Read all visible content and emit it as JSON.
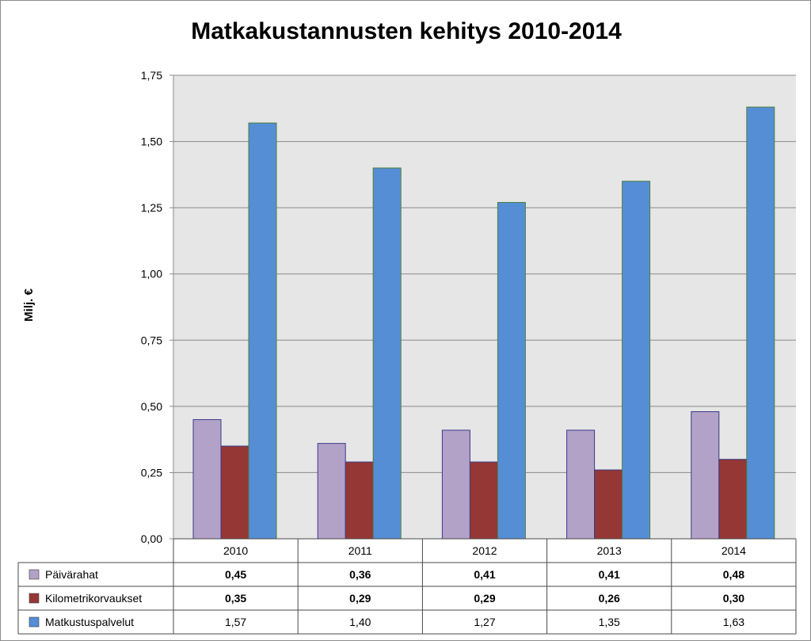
{
  "chart_data": {
    "type": "bar",
    "title": "Matkakustannusten kehitys 2010-2014",
    "ylabel": "Milj. €",
    "xlabel": "",
    "ylim": [
      0,
      1.75
    ],
    "yticks": [
      "0,00",
      "0,25",
      "0,50",
      "0,75",
      "1,00",
      "1,25",
      "1,50",
      "1,75"
    ],
    "grid": true,
    "background_color": "#e6e6e6",
    "categories": [
      "2010",
      "2011",
      "2012",
      "2013",
      "2014"
    ],
    "series": [
      {
        "name": "Päivärahat",
        "color": "#b3a2c7",
        "values": [
          0.45,
          0.36,
          0.41,
          0.41,
          0.48
        ],
        "labels": [
          "0,45",
          "0,36",
          "0,41",
          "0,41",
          "0,48"
        ],
        "bold": true
      },
      {
        "name": "Kilometrikorvaukset",
        "color": "#953735",
        "values": [
          0.35,
          0.29,
          0.29,
          0.26,
          0.3
        ],
        "labels": [
          "0,35",
          "0,29",
          "0,29",
          "0,26",
          "0,30"
        ],
        "bold": true
      },
      {
        "name": "Matkustuspalvelut",
        "color": "#558ed5",
        "values": [
          1.57,
          1.4,
          1.27,
          1.35,
          1.63
        ],
        "labels": [
          "1,57",
          "1,40",
          "1,27",
          "1,35",
          "1,63"
        ],
        "bold": false
      }
    ],
    "legend": "data-table"
  }
}
